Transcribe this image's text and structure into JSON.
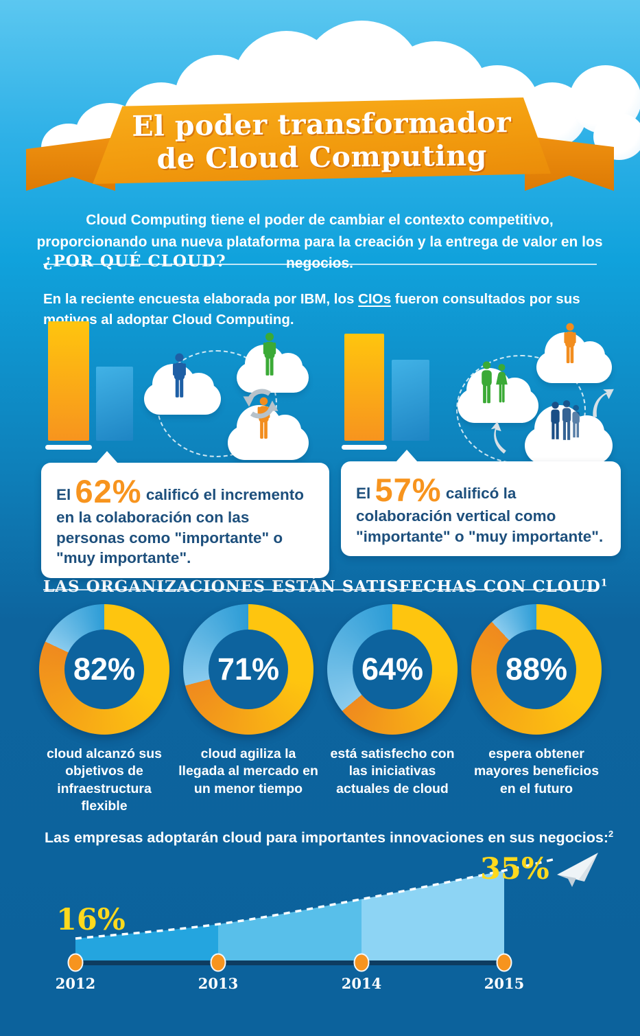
{
  "banner": {
    "title_line1": "El poder transformador",
    "title_line2": "de Cloud Computing"
  },
  "intro": "Cloud Computing tiene el poder de cambiar el contexto competitivo, proporcionando una nueva plataforma para la creación y la entrega de valor en los negocios.",
  "why_cloud": {
    "heading": "¿POR QUÉ CLOUD?",
    "body_before_link": "En la reciente encuesta elaborada por IBM, los ",
    "link_text": "CIOs",
    "body_after_link": " fueron consultados por sus motivos al adoptar Cloud Computing.",
    "callouts": [
      {
        "lead": "El",
        "value": "62%",
        "text": " calificó el incremento en la colaboración con las personas como \"importante\" o \"muy importante\"."
      },
      {
        "lead": "El",
        "value": "57%",
        "text": " calificó la colaboración vertical como \"importante\" o \"muy importante\"."
      }
    ]
  },
  "satisfaction": {
    "heading": "LAS ORGANIZACIONES ESTÁN SATISFECHAS CON CLOUD",
    "footnote_mark": "1"
  },
  "adoption": {
    "heading": "Las empresas adoptarán cloud para importantes innovaciones en sus negocios:",
    "footnote_mark": "2"
  },
  "chart_data": [
    {
      "type": "pie",
      "variant": "donut",
      "title": "LAS ORGANIZACIONES ESTÁN SATISFECHAS CON CLOUD",
      "items": [
        {
          "label": "82%",
          "value": 82,
          "caption": "cloud alcanzó sus objetivos de infraestructura flexible"
        },
        {
          "label": "71%",
          "value": 71,
          "caption": "cloud agiliza la llegada al mercado en un menor tiempo"
        },
        {
          "label": "64%",
          "value": 64,
          "caption": "está satisfecho con las iniciativas actuales de cloud"
        },
        {
          "label": "88%",
          "value": 88,
          "caption": "espera obtener mayores beneficios en el futuro"
        }
      ],
      "colors": {
        "filled_start": "#FEC50F",
        "filled_end": "#EF8A1E",
        "remainder_start": "#8ACBEE",
        "remainder_end": "#2C9CD6"
      }
    },
    {
      "type": "area",
      "title": "Las empresas adoptarán cloud para importantes innovaciones en sus negocios:",
      "x": [
        "2012",
        "2013",
        "2014",
        "2015"
      ],
      "values": [
        16,
        20,
        27,
        35
      ],
      "value_labels_shown": [
        {
          "x": "2012",
          "label": "16%"
        },
        {
          "x": "2015",
          "label": "35%"
        }
      ],
      "values_note": "solo 16% y 35% están rotulados; 2013 y 2014 estimados de la curva",
      "segment_colors": [
        "#24A5DF",
        "#58BFEA",
        "#8DD4F4"
      ],
      "trend_line_style": "white dashed",
      "axis_color": "#0E3C60",
      "marker_color": "#F7941E",
      "label_color": "#FFD91D"
    }
  ],
  "icons": {
    "bar-chart-icon": "two vertical bars",
    "cloud-icon": "cloud shape",
    "person-icon": "standing person silhouette",
    "couple-icon": "two people silhouettes",
    "people-group-icon": "group of people silhouettes",
    "sync-arrows-icon": "circular exchange arrows",
    "curved-arrow-icon": "curved swoosh arrow",
    "paper-plane-icon": "paper airplane"
  }
}
